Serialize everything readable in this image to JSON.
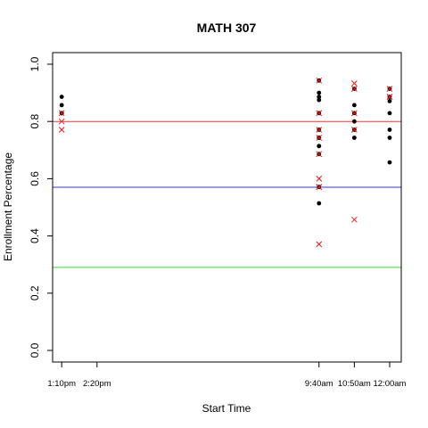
{
  "chart_data": {
    "type": "scatter",
    "title": "MATH 307",
    "xlabel": "Start Time",
    "ylabel": "Enrollment Percentage",
    "ylim": [
      0.0,
      1.0
    ],
    "yticks": [
      {
        "value": 0.0,
        "label": "0.0"
      },
      {
        "value": 0.2,
        "label": "0.2"
      },
      {
        "value": 0.4,
        "label": "0.4"
      },
      {
        "value": 0.6,
        "label": "0.6"
      },
      {
        "value": 0.8,
        "label": "0.8"
      },
      {
        "value": 1.0,
        "label": "1.0"
      }
    ],
    "xlim_minutes": [
      772,
      1463
    ],
    "xticks": [
      {
        "minutes": 790,
        "label": "1:10pm"
      },
      {
        "minutes": 860,
        "label": "2:20pm"
      },
      {
        "minutes": 1300,
        "label": "9:40am"
      },
      {
        "minutes": 1370,
        "label": "10:50am"
      },
      {
        "minutes": 1440,
        "label": "12:00am"
      }
    ],
    "hlines": [
      {
        "y": 0.8,
        "color": "#ff3030"
      },
      {
        "y": 0.57,
        "color": "#3333ee"
      },
      {
        "y": 0.29,
        "color": "#33dd33"
      }
    ],
    "series": [
      {
        "marker": "dot",
        "color": "#000000",
        "points": [
          {
            "x": 790,
            "y": 0.886
          },
          {
            "x": 790,
            "y": 0.857
          },
          {
            "x": 790,
            "y": 0.829
          },
          {
            "x": 790,
            "y": 0.829
          },
          {
            "x": 1300,
            "y": 0.943
          },
          {
            "x": 1300,
            "y": 0.9
          },
          {
            "x": 1300,
            "y": 0.886
          },
          {
            "x": 1300,
            "y": 0.875
          },
          {
            "x": 1300,
            "y": 0.829
          },
          {
            "x": 1300,
            "y": 0.771
          },
          {
            "x": 1300,
            "y": 0.743
          },
          {
            "x": 1300,
            "y": 0.743
          },
          {
            "x": 1300,
            "y": 0.714
          },
          {
            "x": 1300,
            "y": 0.714
          },
          {
            "x": 1300,
            "y": 0.686
          },
          {
            "x": 1300,
            "y": 0.571
          },
          {
            "x": 1300,
            "y": 0.514
          },
          {
            "x": 1370,
            "y": 0.914
          },
          {
            "x": 1370,
            "y": 0.857
          },
          {
            "x": 1370,
            "y": 0.829
          },
          {
            "x": 1370,
            "y": 0.8
          },
          {
            "x": 1370,
            "y": 0.771
          },
          {
            "x": 1370,
            "y": 0.743
          },
          {
            "x": 1440,
            "y": 0.914
          },
          {
            "x": 1440,
            "y": 0.886
          },
          {
            "x": 1440,
            "y": 0.871
          },
          {
            "x": 1440,
            "y": 0.829
          },
          {
            "x": 1440,
            "y": 0.771
          },
          {
            "x": 1440,
            "y": 0.743
          },
          {
            "x": 1440,
            "y": 0.657
          }
        ]
      },
      {
        "marker": "cross",
        "color": "#dd2020",
        "points": [
          {
            "x": 790,
            "y": 0.829
          },
          {
            "x": 790,
            "y": 0.8
          },
          {
            "x": 790,
            "y": 0.771
          },
          {
            "x": 1300,
            "y": 0.943
          },
          {
            "x": 1300,
            "y": 0.829
          },
          {
            "x": 1300,
            "y": 0.771
          },
          {
            "x": 1300,
            "y": 0.743
          },
          {
            "x": 1300,
            "y": 0.686
          },
          {
            "x": 1300,
            "y": 0.6
          },
          {
            "x": 1300,
            "y": 0.571
          },
          {
            "x": 1300,
            "y": 0.571
          },
          {
            "x": 1300,
            "y": 0.371
          },
          {
            "x": 1370,
            "y": 0.933
          },
          {
            "x": 1370,
            "y": 0.914
          },
          {
            "x": 1370,
            "y": 0.829
          },
          {
            "x": 1370,
            "y": 0.771
          },
          {
            "x": 1370,
            "y": 0.457
          },
          {
            "x": 1440,
            "y": 0.914
          },
          {
            "x": 1440,
            "y": 0.886
          },
          {
            "x": 1440,
            "y": 0.886
          }
        ]
      }
    ]
  }
}
